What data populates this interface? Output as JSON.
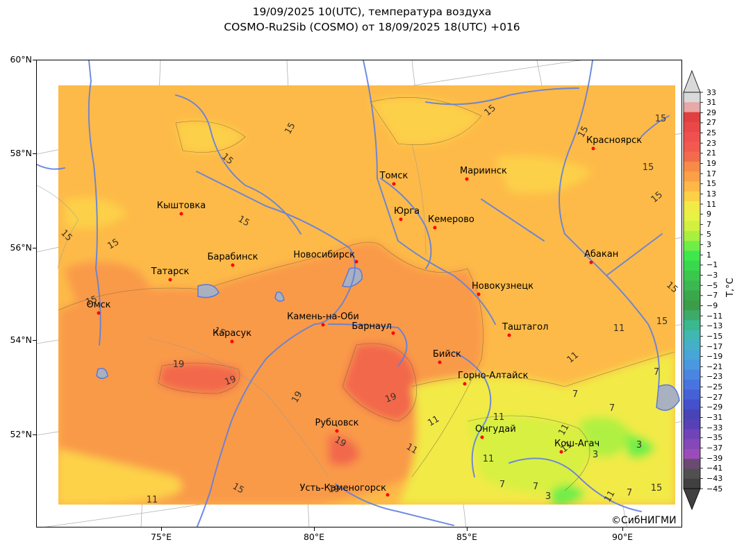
{
  "title": {
    "line1": "19/09/2025 10(UTC), температура воздуха",
    "line2": "COSMO-Ru2Sib (COSMO) от 18/09/2025 18(UTC) +016"
  },
  "lat_labels": [
    {
      "text": "60°N",
      "value": 60
    },
    {
      "text": "58°N",
      "value": 58
    },
    {
      "text": "56°N",
      "value": 56
    },
    {
      "text": "54°N",
      "value": 54
    },
    {
      "text": "52°N",
      "value": 52
    }
  ],
  "lon_labels": [
    {
      "text": "75°E",
      "value": 75
    },
    {
      "text": "80°E",
      "value": 80
    },
    {
      "text": "85°E",
      "value": 85
    },
    {
      "text": "90°E",
      "value": 90
    }
  ],
  "cities": [
    {
      "name": "Томск",
      "lon": 84.95,
      "lat": 56.49
    },
    {
      "name": "Мариинск",
      "lon": 87.75,
      "lat": 56.21
    },
    {
      "name": "Красноярск",
      "lon": 92.87,
      "lat": 56.01
    },
    {
      "name": "Кыштовка",
      "lon": 76.62,
      "lat": 56.56
    },
    {
      "name": "Юрга",
      "lon": 84.88,
      "lat": 55.72
    },
    {
      "name": "Кемерово",
      "lon": 86.09,
      "lat": 55.35
    },
    {
      "name": "Барабинск",
      "lon": 78.35,
      "lat": 55.35
    },
    {
      "name": "Новосибирск",
      "lon": 82.92,
      "lat": 55.03
    },
    {
      "name": "Абакан",
      "lon": 91.44,
      "lat": 53.72
    },
    {
      "name": "Татарск",
      "lon": 75.97,
      "lat": 55.22
    },
    {
      "name": "Новокузнецк",
      "lon": 87.12,
      "lat": 53.76
    },
    {
      "name": "Омск",
      "lon": 73.37,
      "lat": 54.98
    },
    {
      "name": "Камень-на-Оби",
      "lon": 81.35,
      "lat": 53.79
    },
    {
      "name": "Барнаул",
      "lon": 83.78,
      "lat": 53.35
    },
    {
      "name": "Таштагол",
      "lon": 87.9,
      "lat": 52.77
    },
    {
      "name": "Карасук",
      "lon": 78.04,
      "lat": 53.73
    },
    {
      "name": "Бийск",
      "lon": 85.21,
      "lat": 52.54
    },
    {
      "name": "Горно-Алтайск",
      "lon": 85.96,
      "lat": 51.96
    },
    {
      "name": "Рубцовск",
      "lon": 81.2,
      "lat": 51.5
    },
    {
      "name": "Онгудай",
      "lon": 86.14,
      "lat": 50.75
    },
    {
      "name": "Кош-Агач",
      "lon": 88.67,
      "lat": 50.0
    },
    {
      "name": "Усть-Каменогорск",
      "lon": 82.61,
      "lat": 49.95
    }
  ],
  "contour_labels": [
    "15",
    "15",
    "15",
    "15",
    "15",
    "15",
    "15",
    "15",
    "15",
    "15",
    "15",
    "15",
    "15",
    "15",
    "15",
    "15",
    "19",
    "19",
    "19",
    "19",
    "19",
    "19",
    "11",
    "11",
    "11",
    "11",
    "11",
    "11",
    "11",
    "11",
    "11",
    "11",
    "7",
    "7",
    "7",
    "7",
    "7",
    "7",
    "3",
    "3",
    "3"
  ],
  "colorbar": {
    "label": "T,°C",
    "ticks": [
      "33",
      "31",
      "29",
      "27",
      "25",
      "23",
      "21",
      "19",
      "17",
      "15",
      "13",
      "11",
      "9",
      "7",
      "5",
      "3",
      "1",
      "−1",
      "−3",
      "−5",
      "−7",
      "−9",
      "−11",
      "−13",
      "−15",
      "−17",
      "−19",
      "−21",
      "−23",
      "−25",
      "−27",
      "−29",
      "−31",
      "−33",
      "−35",
      "−37",
      "−39",
      "−41",
      "−43",
      "−45"
    ],
    "colors": [
      "#d9d9d9",
      "#e8a8a8",
      "#e04040",
      "#e84848",
      "#f05050",
      "#f25a50",
      "#f46a4c",
      "#f88a48",
      "#fca048",
      "#fdb846",
      "#fdd048",
      "#f2ea46",
      "#e6f244",
      "#d2f040",
      "#a8f040",
      "#70ee48",
      "#3ee84c",
      "#3ad84c",
      "#3ac84c",
      "#3cb850",
      "#3aa84a",
      "#3a9e48",
      "#3eaa6a",
      "#3ab88e",
      "#40b8b0",
      "#44b0c8",
      "#48a6d6",
      "#4a98e0",
      "#4a86e0",
      "#4874e0",
      "#4660d8",
      "#4450cc",
      "#4844b8",
      "#5840b8",
      "#7044b8",
      "#8448b8",
      "#9a4cb8",
      "#6a4a70",
      "#505050",
      "#404040"
    ]
  },
  "copyright": "©СибНИГМИ"
}
